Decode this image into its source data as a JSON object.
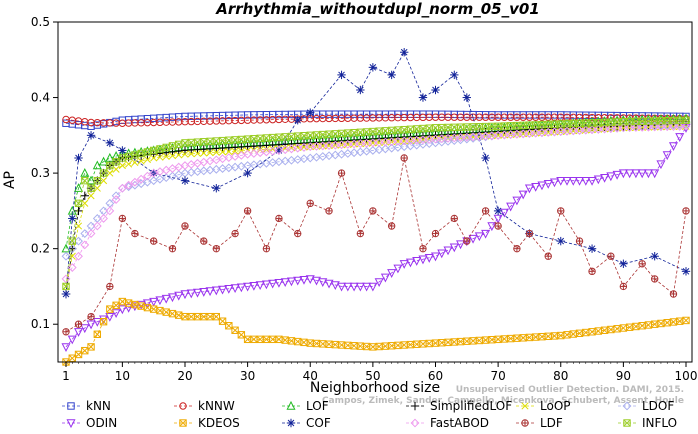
{
  "chart_data": {
    "type": "line",
    "title": "Arrhythmia_withoutdupl_norm_05_v01",
    "xlabel": "Neighborhood size",
    "ylabel": "AP",
    "xlim": [
      1,
      100
    ],
    "ylim": [
      0.05,
      0.5
    ],
    "xticks": [
      "1",
      "10",
      "20",
      "30",
      "40",
      "50",
      "60",
      "70",
      "80",
      "90",
      "100"
    ],
    "yticks": [
      "0.1",
      "0.2",
      "0.3",
      "0.4",
      "0.5"
    ],
    "grid": false,
    "legend_position": "bottom",
    "watermark": [
      "Unsupervised Outlier Detection. DAMI, 2015.",
      "Campos, Zimek, Sander, Campello, Micenkova, Schubert, Assent, Houle"
    ],
    "series": [
      {
        "name": "kNN",
        "color": "#3344cc",
        "marker": "square",
        "k": [
          1,
          5,
          10,
          20,
          30,
          40,
          50,
          60,
          70,
          80,
          90,
          100
        ],
        "values": [
          0.366,
          0.362,
          0.37,
          0.375,
          0.377,
          0.378,
          0.378,
          0.378,
          0.377,
          0.377,
          0.376,
          0.375
        ]
      },
      {
        "name": "kNNW",
        "color": "#cc2222",
        "marker": "circle",
        "k": [
          1,
          5,
          10,
          20,
          30,
          40,
          50,
          60,
          70,
          80,
          90,
          100
        ],
        "values": [
          0.371,
          0.367,
          0.366,
          0.368,
          0.37,
          0.372,
          0.373,
          0.374,
          0.374,
          0.374,
          0.373,
          0.372
        ]
      },
      {
        "name": "LOF",
        "color": "#22bb22",
        "marker": "triangle-up",
        "k": [
          1,
          2,
          3,
          4,
          5,
          6,
          8,
          10,
          15,
          20,
          30,
          40,
          50,
          60,
          70,
          80,
          90,
          100
        ],
        "values": [
          0.2,
          0.25,
          0.28,
          0.3,
          0.29,
          0.31,
          0.32,
          0.325,
          0.33,
          0.335,
          0.34,
          0.345,
          0.35,
          0.355,
          0.36,
          0.365,
          0.37,
          0.372
        ]
      },
      {
        "name": "SimplifiedLOF",
        "color": "#000000",
        "marker": "plus",
        "k": [
          1,
          2,
          3,
          4,
          5,
          6,
          8,
          10,
          15,
          20,
          30,
          40,
          50,
          60,
          70,
          80,
          90,
          100
        ],
        "values": [
          0.14,
          0.2,
          0.25,
          0.27,
          0.28,
          0.29,
          0.31,
          0.32,
          0.325,
          0.33,
          0.335,
          0.34,
          0.345,
          0.35,
          0.355,
          0.36,
          0.362,
          0.365
        ]
      },
      {
        "name": "LoOP",
        "color": "#dddd00",
        "marker": "x",
        "k": [
          1,
          2,
          3,
          4,
          5,
          6,
          8,
          10,
          15,
          20,
          30,
          40,
          50,
          60,
          70,
          80,
          90,
          100
        ],
        "values": [
          0.15,
          0.19,
          0.23,
          0.26,
          0.27,
          0.28,
          0.3,
          0.31,
          0.32,
          0.325,
          0.33,
          0.335,
          0.34,
          0.345,
          0.35,
          0.355,
          0.36,
          0.362
        ]
      },
      {
        "name": "LDOF",
        "color": "#aab0ee",
        "marker": "diamond",
        "k": [
          1,
          3,
          5,
          8,
          10,
          15,
          20,
          30,
          40,
          50,
          60,
          70,
          80,
          90,
          100
        ],
        "values": [
          0.19,
          0.21,
          0.23,
          0.26,
          0.28,
          0.29,
          0.3,
          0.31,
          0.32,
          0.33,
          0.34,
          0.35,
          0.355,
          0.36,
          0.365
        ]
      },
      {
        "name": "ODIN",
        "color": "#9933ee",
        "marker": "triangle-down",
        "k": [
          1,
          3,
          5,
          8,
          10,
          15,
          20,
          30,
          40,
          45,
          50,
          55,
          60,
          65,
          68,
          70,
          75,
          80,
          85,
          90,
          95,
          100
        ],
        "values": [
          0.07,
          0.09,
          0.1,
          0.11,
          0.12,
          0.13,
          0.14,
          0.15,
          0.16,
          0.15,
          0.15,
          0.18,
          0.19,
          0.21,
          0.22,
          0.24,
          0.28,
          0.29,
          0.29,
          0.3,
          0.3,
          0.36
        ]
      },
      {
        "name": "KDEOS",
        "color": "#eeaa00",
        "marker": "square-x",
        "k": [
          1,
          2,
          3,
          5,
          8,
          10,
          15,
          20,
          25,
          30,
          35,
          40,
          50,
          60,
          70,
          80,
          90,
          100
        ],
        "values": [
          0.05,
          0.055,
          0.06,
          0.07,
          0.12,
          0.13,
          0.12,
          0.11,
          0.11,
          0.08,
          0.08,
          0.075,
          0.07,
          0.075,
          0.08,
          0.085,
          0.095,
          0.105
        ]
      },
      {
        "name": "COF",
        "color": "#112299",
        "marker": "star",
        "k": [
          1,
          2,
          3,
          5,
          8,
          10,
          15,
          20,
          25,
          30,
          35,
          38,
          40,
          45,
          48,
          50,
          53,
          55,
          58,
          60,
          63,
          65,
          68,
          70,
          75,
          80,
          85,
          90,
          95,
          100
        ],
        "values": [
          0.14,
          0.24,
          0.32,
          0.35,
          0.34,
          0.33,
          0.3,
          0.29,
          0.28,
          0.3,
          0.33,
          0.37,
          0.38,
          0.43,
          0.41,
          0.44,
          0.43,
          0.46,
          0.4,
          0.41,
          0.43,
          0.4,
          0.32,
          0.25,
          0.22,
          0.21,
          0.2,
          0.18,
          0.19,
          0.17
        ]
      },
      {
        "name": "FastABOD",
        "color": "#ee99ee",
        "marker": "diamond",
        "k": [
          1,
          3,
          5,
          8,
          10,
          15,
          20,
          30,
          40,
          50,
          60,
          70,
          80,
          90,
          100
        ],
        "values": [
          0.16,
          0.19,
          0.22,
          0.25,
          0.28,
          0.3,
          0.31,
          0.325,
          0.335,
          0.34,
          0.345,
          0.35,
          0.355,
          0.36,
          0.362
        ]
      },
      {
        "name": "LDF",
        "color": "#aa3333",
        "marker": "circle-plus",
        "k": [
          1,
          3,
          5,
          8,
          10,
          12,
          15,
          18,
          20,
          23,
          25,
          28,
          30,
          33,
          35,
          38,
          40,
          43,
          45,
          48,
          50,
          53,
          55,
          58,
          60,
          63,
          65,
          68,
          70,
          73,
          75,
          78,
          80,
          83,
          85,
          88,
          90,
          93,
          95,
          98,
          100
        ],
        "values": [
          0.09,
          0.1,
          0.11,
          0.15,
          0.24,
          0.22,
          0.21,
          0.2,
          0.23,
          0.21,
          0.2,
          0.22,
          0.25,
          0.2,
          0.24,
          0.22,
          0.26,
          0.25,
          0.3,
          0.22,
          0.25,
          0.23,
          0.32,
          0.2,
          0.22,
          0.24,
          0.21,
          0.25,
          0.23,
          0.2,
          0.22,
          0.19,
          0.25,
          0.21,
          0.17,
          0.19,
          0.15,
          0.18,
          0.16,
          0.14,
          0.25
        ]
      },
      {
        "name": "INFLO",
        "color": "#99cc22",
        "marker": "square-x",
        "k": [
          1,
          2,
          3,
          4,
          5,
          6,
          8,
          10,
          15,
          20,
          30,
          40,
          50,
          60,
          70,
          80,
          90,
          100
        ],
        "values": [
          0.15,
          0.21,
          0.26,
          0.29,
          0.28,
          0.29,
          0.31,
          0.32,
          0.33,
          0.34,
          0.345,
          0.35,
          0.355,
          0.36,
          0.362,
          0.365,
          0.368,
          0.37
        ]
      }
    ]
  }
}
